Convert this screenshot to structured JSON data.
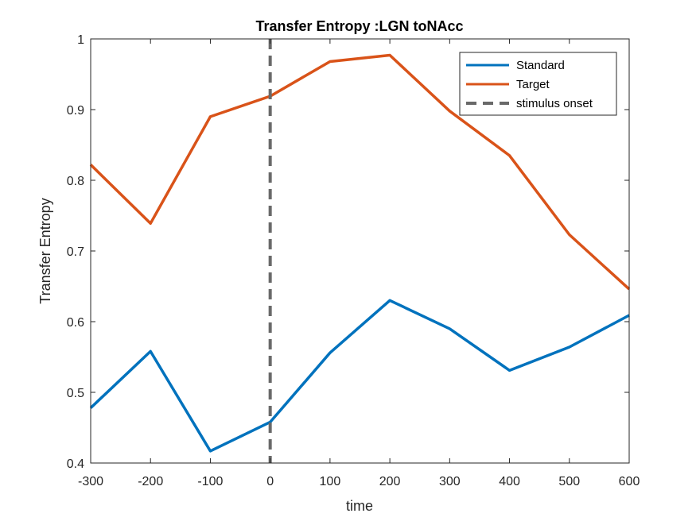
{
  "chart_data": {
    "type": "line",
    "title": "Transfer Entropy :LGN toNAcc",
    "xlabel": "time",
    "ylabel": "Transfer Entropy",
    "xlim": [
      -300,
      600
    ],
    "ylim": [
      0.4,
      1
    ],
    "x": [
      -300,
      -200,
      -100,
      0,
      100,
      200,
      300,
      400,
      500,
      600
    ],
    "x_ticks": [
      "-300",
      "-200",
      "-100",
      "0",
      "100",
      "200",
      "300",
      "400",
      "500",
      "600"
    ],
    "y_ticks": [
      "0.4",
      "0.5",
      "0.6",
      "0.7",
      "0.8",
      "0.9",
      "1"
    ],
    "series": [
      {
        "name": "Standard",
        "color": "#0072BD",
        "values": [
          0.478,
          0.558,
          0.417,
          0.458,
          0.556,
          0.63,
          0.59,
          0.531,
          0.564,
          0.609
        ]
      },
      {
        "name": "Target",
        "color": "#D95319",
        "values": [
          0.822,
          0.739,
          0.89,
          0.919,
          0.968,
          0.977,
          0.898,
          0.835,
          0.723,
          0.646
        ]
      }
    ],
    "vline": {
      "name": "stimulus onset",
      "x": 0,
      "color": "#696969",
      "style": "dashed"
    },
    "legend_position": "top-right",
    "grid": false
  }
}
